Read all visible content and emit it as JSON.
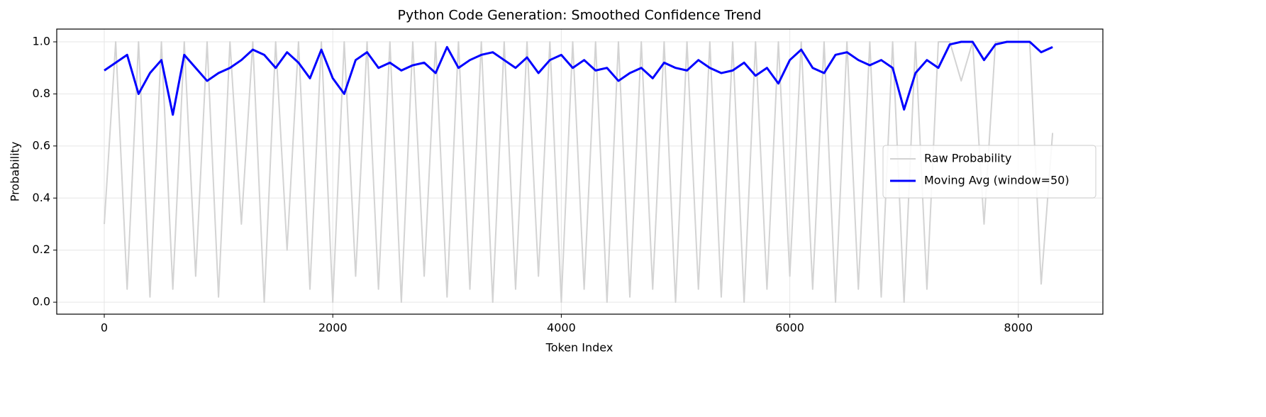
{
  "chart_data": {
    "type": "line",
    "title": "Python Code Generation: Smoothed Confidence Trend",
    "xlabel": "Token Index",
    "ylabel": "Probability",
    "x": [
      0,
      100,
      200,
      300,
      400,
      500,
      600,
      700,
      800,
      900,
      1000,
      1100,
      1200,
      1300,
      1400,
      1500,
      1600,
      1700,
      1800,
      1900,
      2000,
      2100,
      2200,
      2300,
      2400,
      2500,
      2600,
      2700,
      2800,
      2900,
      3000,
      3100,
      3200,
      3300,
      3400,
      3500,
      3600,
      3700,
      3800,
      3900,
      4000,
      4100,
      4200,
      4300,
      4400,
      4500,
      4600,
      4700,
      4800,
      4900,
      5000,
      5100,
      5200,
      5300,
      5400,
      5500,
      5600,
      5700,
      5800,
      5900,
      6000,
      6100,
      6200,
      6300,
      6400,
      6500,
      6600,
      6700,
      6800,
      6900,
      7000,
      7100,
      7200,
      7300,
      7400,
      7500,
      7600,
      7700,
      7800,
      7900,
      8000,
      8100,
      8200,
      8300
    ],
    "series": [
      {
        "name": "Raw Probability",
        "color": "#d3d3d3",
        "values": [
          0.3,
          1.0,
          0.05,
          1.0,
          0.02,
          1.0,
          0.05,
          1.0,
          0.1,
          1.0,
          0.02,
          1.0,
          0.3,
          1.0,
          0.0,
          1.0,
          0.2,
          1.0,
          0.05,
          1.0,
          0.0,
          1.0,
          0.1,
          1.0,
          0.05,
          1.0,
          0.0,
          1.0,
          0.1,
          1.0,
          0.02,
          1.0,
          0.05,
          1.0,
          0.0,
          1.0,
          0.05,
          1.0,
          0.1,
          1.0,
          0.0,
          1.0,
          0.05,
          1.0,
          0.0,
          1.0,
          0.02,
          1.0,
          0.05,
          1.0,
          0.0,
          1.0,
          0.05,
          1.0,
          0.02,
          1.0,
          0.0,
          1.0,
          0.05,
          1.0,
          0.1,
          1.0,
          0.05,
          1.0,
          0.0,
          1.0,
          0.05,
          1.0,
          0.02,
          1.0,
          0.0,
          1.0,
          0.05,
          1.0,
          1.0,
          0.85,
          1.0,
          0.3,
          1.0,
          1.0,
          1.0,
          1.0,
          0.07,
          0.65
        ]
      },
      {
        "name": "Moving Avg (window=50)",
        "color": "#0000ff",
        "values": [
          0.89,
          0.92,
          0.95,
          0.8,
          0.88,
          0.93,
          0.72,
          0.95,
          0.9,
          0.85,
          0.88,
          0.9,
          0.93,
          0.97,
          0.95,
          0.9,
          0.96,
          0.92,
          0.86,
          0.97,
          0.86,
          0.8,
          0.93,
          0.96,
          0.9,
          0.92,
          0.89,
          0.91,
          0.92,
          0.88,
          0.98,
          0.9,
          0.93,
          0.95,
          0.96,
          0.93,
          0.9,
          0.94,
          0.88,
          0.93,
          0.95,
          0.9,
          0.93,
          0.89,
          0.9,
          0.85,
          0.88,
          0.9,
          0.86,
          0.92,
          0.9,
          0.89,
          0.93,
          0.9,
          0.88,
          0.89,
          0.92,
          0.87,
          0.9,
          0.84,
          0.93,
          0.97,
          0.9,
          0.88,
          0.95,
          0.96,
          0.93,
          0.91,
          0.93,
          0.9,
          0.74,
          0.88,
          0.93,
          0.9,
          0.99,
          1.0,
          1.0,
          0.93,
          0.99,
          1.0,
          1.0,
          1.0,
          0.96,
          0.98
        ]
      }
    ],
    "xlim": [
      -416,
      8740
    ],
    "ylim": [
      -0.046,
      1.049
    ],
    "xticks": [
      0,
      2000,
      4000,
      6000,
      8000
    ],
    "yticks": [
      {
        "value": 0,
        "label": "0.0"
      },
      0.2,
      0.4,
      0.6,
      0.8,
      {
        "value": 1,
        "label": "1.0"
      }
    ],
    "grid": true,
    "legend": "right"
  }
}
